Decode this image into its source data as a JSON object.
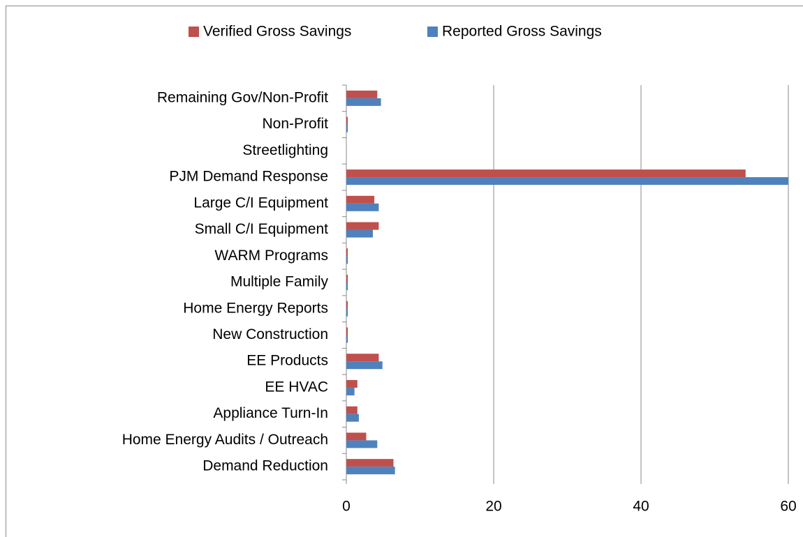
{
  "chart_data": {
    "type": "bar",
    "orientation": "horizontal",
    "categories": [
      "Demand Reduction",
      "Home Energy Audits / Outreach",
      "Appliance Turn-In",
      "EE HVAC",
      "EE Products",
      "New Construction",
      "Home Energy Reports",
      "Multiple Family",
      "WARM Programs",
      "Small C/I Equipment",
      "Large  C/I Equipment",
      "PJM Demand Response",
      "Streetlighting",
      "Non-Profit",
      "Remaining Gov/Non-Profit"
    ],
    "series": [
      {
        "name": "Verified Gross Savings",
        "color": "#c0504d",
        "values": [
          6.4,
          2.7,
          1.5,
          1.5,
          4.4,
          0.2,
          0.2,
          0.2,
          0.2,
          4.4,
          3.8,
          54.2,
          0,
          0.2,
          4.2
        ]
      },
      {
        "name": "Reported Gross Savings",
        "color": "#4f81bd",
        "values": [
          6.6,
          4.2,
          1.7,
          1.1,
          4.9,
          0.2,
          0.2,
          0.2,
          0.2,
          3.6,
          4.4,
          60,
          0,
          0.2,
          4.7
        ]
      }
    ],
    "xlim": [
      0,
      60
    ],
    "xticks": [
      0,
      20,
      40,
      60
    ],
    "grid": true,
    "legend": "top"
  }
}
